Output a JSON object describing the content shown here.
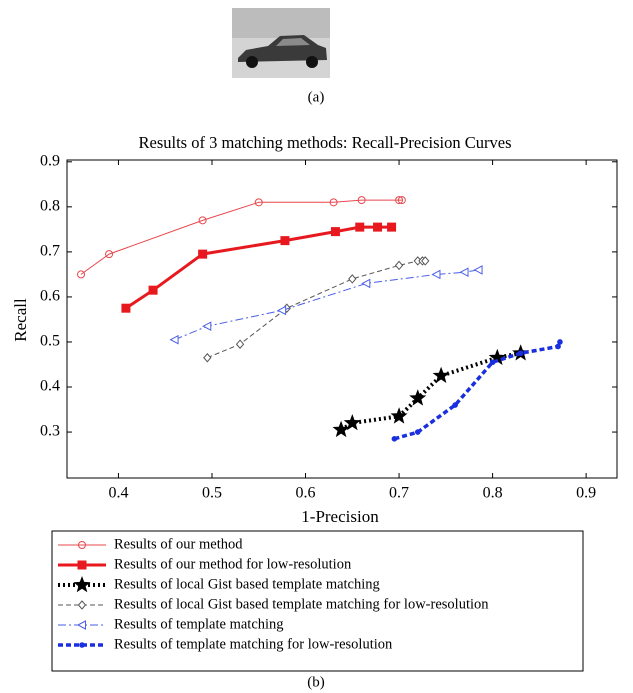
{
  "panels": [
    "(a)",
    "(b)"
  ],
  "chart_data": {
    "type": "line",
    "title": "Results of 3 matching methods: Recall-Precision Curves",
    "x_label": "1-Precision",
    "y_label": "Recall",
    "xlim": [
      0.345,
      0.933
    ],
    "ylim": [
      0.198,
      0.904
    ],
    "xticks": [
      0.4,
      0.5,
      0.6,
      0.7,
      0.8,
      0.9
    ],
    "yticks": [
      0.3,
      0.4,
      0.5,
      0.6,
      0.7,
      0.8,
      0.9
    ],
    "grid": false,
    "series": [
      {
        "name": "Results of our method",
        "color": "#e8474c",
        "marker": "circle",
        "linestyle": "solid",
        "linewidth": 1,
        "x": [
          0.36,
          0.39,
          0.49,
          0.55,
          0.63,
          0.66,
          0.7,
          0.703
        ],
        "values": [
          0.65,
          0.695,
          0.77,
          0.81,
          0.81,
          0.815,
          0.815,
          0.815
        ]
      },
      {
        "name": "Results of our method for low-resolution",
        "color": "#e8191e",
        "marker": "square",
        "linestyle": "solid",
        "linewidth": 3,
        "x": [
          0.408,
          0.437,
          0.49,
          0.578,
          0.632,
          0.658,
          0.677,
          0.692
        ],
        "values": [
          0.575,
          0.615,
          0.695,
          0.725,
          0.745,
          0.755,
          0.755,
          0.755
        ]
      },
      {
        "name": "Results of local Gist based template matching",
        "color": "#000000",
        "marker": "star",
        "linestyle": "dotted",
        "linewidth": 4,
        "x": [
          0.638,
          0.65,
          0.7,
          0.72,
          0.745,
          0.805,
          0.83
        ],
        "values": [
          0.305,
          0.32,
          0.335,
          0.375,
          0.425,
          0.465,
          0.475
        ]
      },
      {
        "name": "Results of local Gist based template matching for low-resolution",
        "color": "#555555",
        "marker": "diamond",
        "linestyle": "dashed",
        "linewidth": 1,
        "x": [
          0.495,
          0.53,
          0.58,
          0.65,
          0.7,
          0.72,
          0.725,
          0.728
        ],
        "values": [
          0.465,
          0.495,
          0.575,
          0.64,
          0.67,
          0.68,
          0.68,
          0.68
        ]
      },
      {
        "name": "Results of template matching",
        "color": "#4a5ee8",
        "marker": "triangle-left",
        "linestyle": "dashdot",
        "linewidth": 1,
        "x": [
          0.46,
          0.495,
          0.575,
          0.665,
          0.74,
          0.77,
          0.785
        ],
        "values": [
          0.505,
          0.535,
          0.57,
          0.63,
          0.65,
          0.655,
          0.66
        ]
      },
      {
        "name": "Results of template matching for low-resolution",
        "color": "#1a2fe0",
        "marker": "dot",
        "linestyle": "dashed",
        "linewidth": 3.5,
        "x": [
          0.695,
          0.72,
          0.76,
          0.8,
          0.83,
          0.87,
          0.872
        ],
        "values": [
          0.285,
          0.3,
          0.36,
          0.455,
          0.475,
          0.49,
          0.5
        ]
      }
    ]
  }
}
